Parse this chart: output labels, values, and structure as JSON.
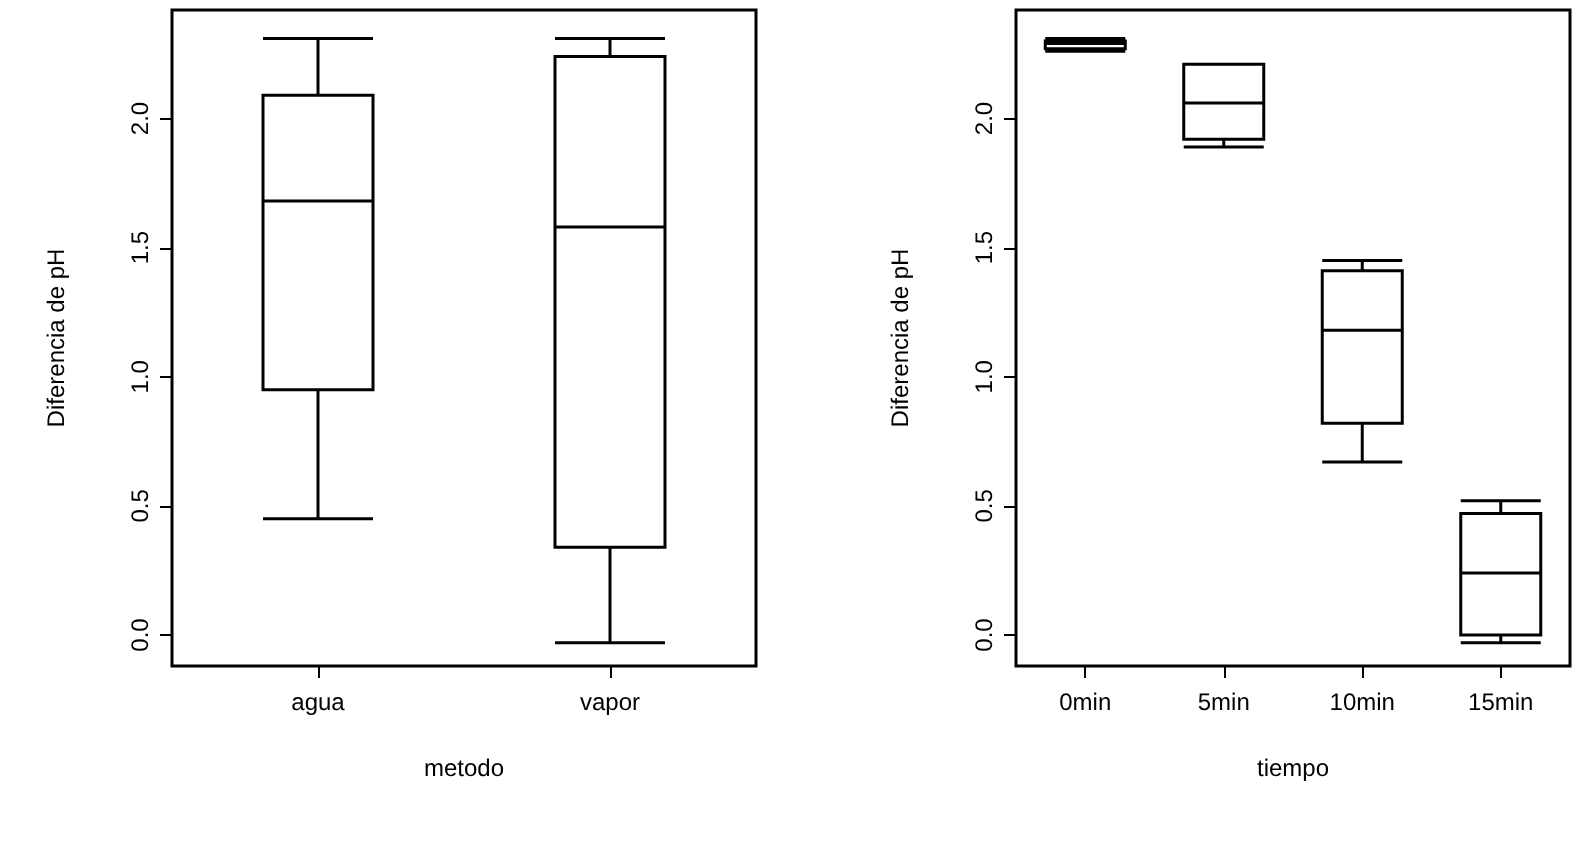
{
  "chart_data": [
    {
      "type": "box",
      "categories": [
        "agua",
        "vapor"
      ],
      "xlabel": "metodo",
      "ylabel": "Diferencia de pH",
      "ylim": [
        -0.12,
        2.42
      ],
      "yticks": [
        {
          "value": 0,
          "label": "0.0"
        },
        {
          "value": 0.5,
          "label": "0.5"
        },
        {
          "value": 1,
          "label": "1.0"
        },
        {
          "value": 1.5,
          "label": "1.5"
        },
        {
          "value": 2,
          "label": "2.0"
        }
      ],
      "boxes": [
        {
          "low": 0.45,
          "q1": 0.95,
          "median": 1.68,
          "q3": 2.09,
          "high": 2.31
        },
        {
          "low": -0.03,
          "q1": 0.34,
          "median": 1.58,
          "q3": 2.24,
          "high": 2.31
        }
      ]
    },
    {
      "type": "box",
      "categories": [
        "0min",
        "5min",
        "10min",
        "15min"
      ],
      "xlabel": "tiempo",
      "ylabel": "Diferencia de pH",
      "ylim": [
        -0.12,
        2.42
      ],
      "yticks": [
        {
          "value": 0,
          "label": "0.0"
        },
        {
          "value": 0.5,
          "label": "0.5"
        },
        {
          "value": 1,
          "label": "1.0"
        },
        {
          "value": 1.5,
          "label": "1.5"
        },
        {
          "value": 2,
          "label": "2.0"
        }
      ],
      "boxes": [
        {
          "low": 2.26,
          "q1": 2.27,
          "median": 2.29,
          "q3": 2.3,
          "high": 2.31
        },
        {
          "low": 1.89,
          "q1": 1.92,
          "median": 2.06,
          "q3": 2.21,
          "high": 2.21
        },
        {
          "low": 0.67,
          "q1": 0.82,
          "median": 1.18,
          "q3": 1.41,
          "high": 1.45
        },
        {
          "low": -0.03,
          "q1": 0,
          "median": 0.24,
          "q3": 0.47,
          "high": 0.52
        }
      ]
    }
  ]
}
